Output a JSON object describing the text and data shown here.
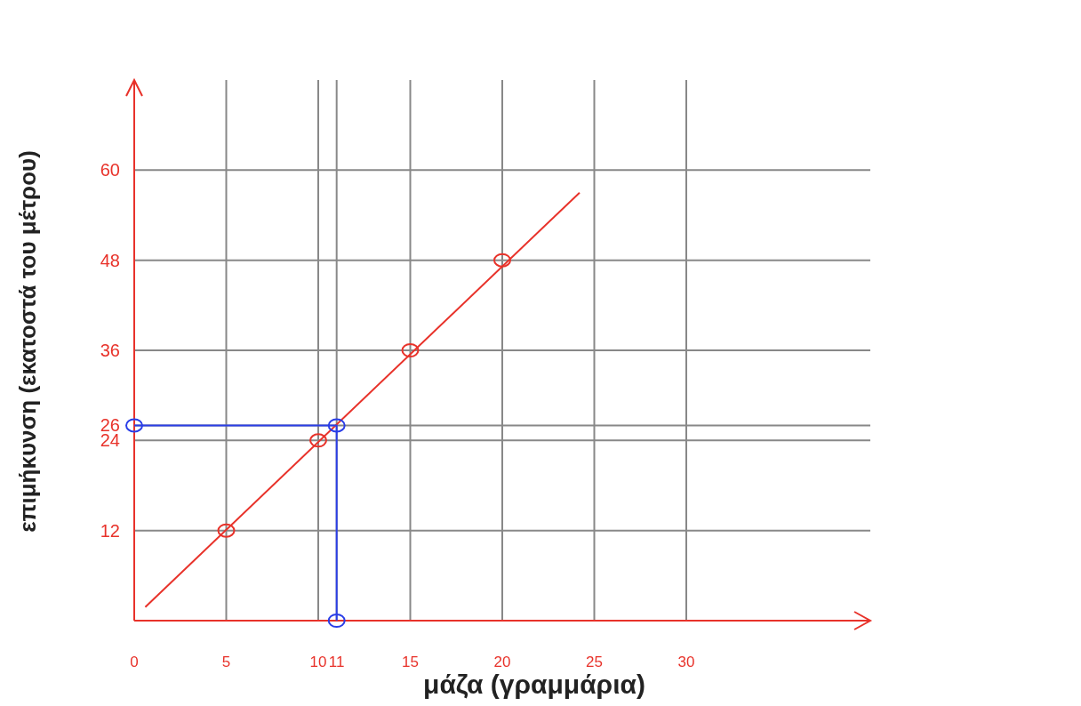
{
  "chart_data": {
    "type": "scatter",
    "xlabel": "μάζα (γραμμάρια)",
    "ylabel": "επιμήκυνση (εκατοστά του μέτρου)",
    "xlim": [
      0,
      40
    ],
    "ylim": [
      0,
      72
    ],
    "xticks": [
      0,
      5,
      10,
      11,
      15,
      20,
      25,
      30
    ],
    "yticks": [
      12,
      24,
      26,
      36,
      48,
      60
    ],
    "grid": true,
    "marker": "circle",
    "series": [
      {
        "color": "#e8322a",
        "x": [
          5,
          10,
          15,
          20
        ],
        "values": [
          12,
          24,
          36,
          48
        ]
      },
      {
        "type": "line",
        "color": "#e8322a",
        "x": [
          0.6,
          24.2
        ],
        "values": [
          1.8,
          57
        ],
        "marker": "none"
      },
      {
        "type": "line",
        "color": "#2a3ee8",
        "x": [
          0,
          11,
          11
        ],
        "values": [
          26,
          26,
          0
        ],
        "marker": "circle"
      }
    ]
  }
}
